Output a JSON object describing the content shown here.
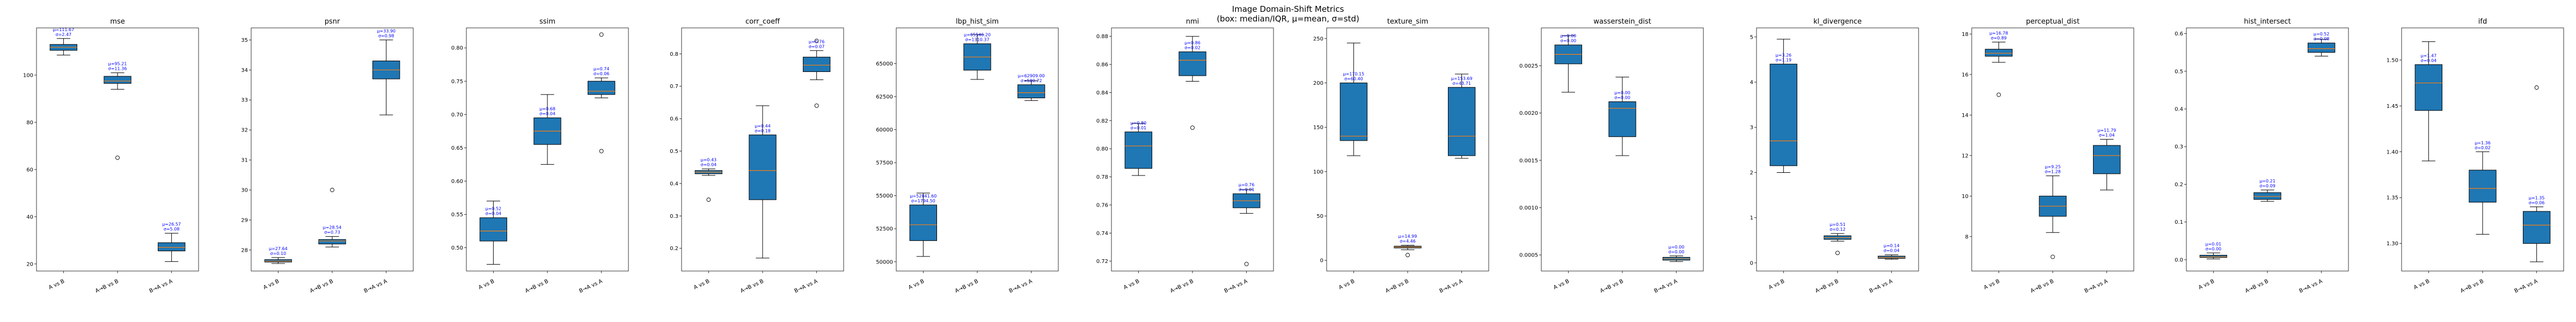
{
  "figure": {
    "title_line1": "Image Domain-Shift Metrics",
    "title_line2": "(box: median/IQR, μ=mean, σ=std)"
  },
  "colors": {
    "box_fill": "#1f77b4",
    "median": "#ff7f0e",
    "annotation": "#0000ff",
    "axis": "#000000"
  },
  "chart_data": [
    {
      "type": "box",
      "title": "mse",
      "categories": [
        "A vs B",
        "A→B vs B",
        "B→A vs A"
      ],
      "ylim": [
        17,
        120
      ],
      "yticks": [
        20,
        40,
        60,
        80,
        100
      ],
      "yticklabels": [
        "20",
        "40",
        "60",
        "80",
        "100"
      ],
      "boxes": [
        {
          "whislo": 108.5,
          "q1": 110.5,
          "med": 111.8,
          "q3": 113.0,
          "whishi": 115.5,
          "fliers": []
        },
        {
          "whislo": 94.0,
          "q1": 96.5,
          "med": 97.5,
          "q3": 99.5,
          "whishi": 101.0,
          "fliers": [
            65.0
          ]
        },
        {
          "whislo": 21.0,
          "q1": 25.5,
          "med": 27.0,
          "q3": 29.0,
          "whishi": 33.0,
          "fliers": []
        }
      ],
      "annotations": [
        {
          "mean_label": "μ=111.67",
          "std_label": "σ=2.47",
          "anchor": 115.5
        },
        {
          "mean_label": "μ=95.21",
          "std_label": "σ=11.36",
          "anchor": 101.0
        },
        {
          "mean_label": "μ=26.57",
          "std_label": "σ=5.08",
          "anchor": 33.0
        }
      ]
    },
    {
      "type": "box",
      "title": "psnr",
      "categories": [
        "A vs B",
        "A→B vs B",
        "B→A vs A"
      ],
      "ylim": [
        27.3,
        35.4
      ],
      "yticks": [
        28,
        29,
        30,
        31,
        32,
        33,
        34,
        35
      ],
      "yticklabels": [
        "28",
        "29",
        "30",
        "31",
        "32",
        "33",
        "34",
        "35"
      ],
      "boxes": [
        {
          "whislo": 27.55,
          "q1": 27.6,
          "med": 27.63,
          "q3": 27.68,
          "whishi": 27.75,
          "fliers": []
        },
        {
          "whislo": 28.1,
          "q1": 28.2,
          "med": 28.3,
          "q3": 28.35,
          "whishi": 28.45,
          "fliers": [
            30.0
          ]
        },
        {
          "whislo": 32.5,
          "q1": 33.7,
          "med": 34.0,
          "q3": 34.3,
          "whishi": 35.0,
          "fliers": []
        }
      ],
      "annotations": [
        {
          "mean_label": "μ=27.64",
          "std_label": "σ=0.10",
          "anchor": 27.75
        },
        {
          "mean_label": "μ=28.54",
          "std_label": "σ=0.73",
          "anchor": 28.45
        },
        {
          "mean_label": "μ=33.90",
          "std_label": "σ=0.98",
          "anchor": 35.0
        }
      ]
    },
    {
      "type": "box",
      "title": "ssim",
      "categories": [
        "A vs B",
        "A→B vs B",
        "B→A vs A"
      ],
      "ylim": [
        0.465,
        0.83
      ],
      "yticks": [
        0.5,
        0.55,
        0.6,
        0.65,
        0.7,
        0.75,
        0.8
      ],
      "yticklabels": [
        "0.50",
        "0.55",
        "0.60",
        "0.65",
        "0.70",
        "0.75",
        "0.80"
      ],
      "boxes": [
        {
          "whislo": 0.475,
          "q1": 0.51,
          "med": 0.525,
          "q3": 0.545,
          "whishi": 0.57,
          "fliers": []
        },
        {
          "whislo": 0.625,
          "q1": 0.655,
          "med": 0.675,
          "q3": 0.695,
          "whishi": 0.73,
          "fliers": []
        },
        {
          "whislo": 0.725,
          "q1": 0.73,
          "med": 0.735,
          "q3": 0.75,
          "whishi": 0.755,
          "fliers": [
            0.645,
            0.82
          ]
        }
      ],
      "annotations": [
        {
          "mean_label": "μ=0.52",
          "std_label": "σ=0.04",
          "anchor": 0.545
        },
        {
          "mean_label": "μ=0.68",
          "std_label": "σ=0.04",
          "anchor": 0.695
        },
        {
          "mean_label": "μ=0.74",
          "std_label": "σ=0.06",
          "anchor": 0.755
        }
      ]
    },
    {
      "type": "box",
      "title": "corr_coeff",
      "categories": [
        "A vs B",
        "A→B vs B",
        "B→A vs A"
      ],
      "ylim": [
        0.13,
        0.88
      ],
      "yticks": [
        0.2,
        0.3,
        0.4,
        0.5,
        0.6,
        0.7,
        0.8
      ],
      "yticklabels": [
        "0.2",
        "0.3",
        "0.4",
        "0.5",
        "0.6",
        "0.7",
        "0.8"
      ],
      "boxes": [
        {
          "whislo": 0.425,
          "q1": 0.43,
          "med": 0.435,
          "q3": 0.44,
          "whishi": 0.445,
          "fliers": [
            0.35
          ]
        },
        {
          "whislo": 0.17,
          "q1": 0.35,
          "med": 0.44,
          "q3": 0.55,
          "whishi": 0.64,
          "fliers": []
        },
        {
          "whislo": 0.72,
          "q1": 0.745,
          "med": 0.765,
          "q3": 0.79,
          "whishi": 0.81,
          "fliers": [
            0.64,
            0.84
          ]
        }
      ],
      "annotations": [
        {
          "mean_label": "μ=0.43",
          "std_label": "σ=0.04",
          "anchor": 0.445
        },
        {
          "mean_label": "μ=0.44",
          "std_label": "σ=0.18",
          "anchor": 0.55
        },
        {
          "mean_label": "μ=0.76",
          "std_label": "σ=0.07",
          "anchor": 0.81
        }
      ]
    },
    {
      "type": "box",
      "title": "lbp_hist_sim",
      "categories": [
        "A vs B",
        "A→B vs B",
        "B→A vs A"
      ],
      "ylim": [
        49300,
        67700
      ],
      "yticks": [
        50000,
        52500,
        55000,
        57500,
        60000,
        62500,
        65000
      ],
      "yticklabels": [
        "50000",
        "52500",
        "55000",
        "57500",
        "60000",
        "62500",
        "65000"
      ],
      "boxes": [
        {
          "whislo": 50400,
          "q1": 51600,
          "med": 52800,
          "q3": 54300,
          "whishi": 55200,
          "fliers": []
        },
        {
          "whislo": 63800,
          "q1": 64500,
          "med": 65500,
          "q3": 66500,
          "whishi": 67200,
          "fliers": []
        },
        {
          "whislo": 62200,
          "q1": 62400,
          "med": 62800,
          "q3": 63400,
          "whishi": 63700,
          "fliers": []
        }
      ],
      "annotations": [
        {
          "mean_label": "μ=52841.60",
          "std_label": "σ=1794.50",
          "anchor": 54300
        },
        {
          "mean_label": "μ=65546.20",
          "std_label": "σ=1310.37",
          "anchor": 66500
        },
        {
          "mean_label": "μ=62909.00",
          "std_label": "σ=580.72",
          "anchor": 63400
        }
      ]
    },
    {
      "type": "box",
      "title": "nmi",
      "categories": [
        "A vs B",
        "A→B vs B",
        "B→A vs A"
      ],
      "ylim": [
        0.713,
        0.886
      ],
      "yticks": [
        0.72,
        0.74,
        0.76,
        0.78,
        0.8,
        0.82,
        0.84,
        0.86,
        0.88
      ],
      "yticklabels": [
        "0.72",
        "0.74",
        "0.76",
        "0.78",
        "0.80",
        "0.82",
        "0.84",
        "0.86",
        "0.88"
      ],
      "boxes": [
        {
          "whislo": 0.781,
          "q1": 0.786,
          "med": 0.802,
          "q3": 0.812,
          "whishi": 0.818,
          "fliers": []
        },
        {
          "whislo": 0.848,
          "q1": 0.852,
          "med": 0.863,
          "q3": 0.869,
          "whishi": 0.88,
          "fliers": [
            0.815
          ]
        },
        {
          "whislo": 0.754,
          "q1": 0.758,
          "med": 0.763,
          "q3": 0.768,
          "whishi": 0.771,
          "fliers": [
            0.718
          ]
        }
      ],
      "annotations": [
        {
          "mean_label": "μ=0.80",
          "std_label": "σ=0.01",
          "anchor": 0.812
        },
        {
          "mean_label": "μ=0.86",
          "std_label": "σ=0.02",
          "anchor": 0.869
        },
        {
          "mean_label": "μ=0.76",
          "std_label": "σ=0.01",
          "anchor": 0.768
        }
      ]
    },
    {
      "type": "box",
      "title": "texture_sim",
      "categories": [
        "A vs B",
        "A→B vs B",
        "B→A vs A"
      ],
      "ylim": [
        -12,
        262
      ],
      "yticks": [
        0,
        50,
        100,
        150,
        200,
        250
      ],
      "yticklabels": [
        "0",
        "50",
        "100",
        "150",
        "200",
        "250"
      ],
      "boxes": [
        {
          "whislo": 118,
          "q1": 135,
          "med": 140,
          "q3": 200,
          "whishi": 245,
          "fliers": []
        },
        {
          "whislo": 12,
          "q1": 14,
          "med": 15,
          "q3": 16,
          "whishi": 17,
          "fliers": [
            6
          ]
        },
        {
          "whislo": 115,
          "q1": 118,
          "med": 140,
          "q3": 195,
          "whishi": 210,
          "fliers": []
        }
      ],
      "annotations": [
        {
          "mean_label": "μ=170.15",
          "std_label": "σ=60.40",
          "anchor": 200
        },
        {
          "mean_label": "μ=14.99",
          "std_label": "σ=4.46",
          "anchor": 17
        },
        {
          "mean_label": "μ=153.69",
          "std_label": "σ=43.71",
          "anchor": 195
        }
      ]
    },
    {
      "type": "box",
      "title": "wasserstein_dist",
      "categories": [
        "A vs B",
        "A→B vs B",
        "B→A vs A"
      ],
      "ylim": [
        0.00033,
        0.0029
      ],
      "yticks": [
        0.0005,
        0.001,
        0.0015,
        0.002,
        0.0025
      ],
      "yticklabels": [
        "0.0005",
        "0.0010",
        "0.0015",
        "0.0020",
        "0.0025"
      ],
      "boxes": [
        {
          "whislo": 0.00222,
          "q1": 0.00252,
          "med": 0.00262,
          "q3": 0.00272,
          "whishi": 0.00282,
          "fliers": []
        },
        {
          "whislo": 0.00155,
          "q1": 0.00175,
          "med": 0.00205,
          "q3": 0.00212,
          "whishi": 0.00238,
          "fliers": []
        },
        {
          "whislo": 0.00043,
          "q1": 0.000445,
          "med": 0.00046,
          "q3": 0.000475,
          "whishi": 0.00049,
          "fliers": []
        }
      ],
      "annotations": [
        {
          "mean_label": "μ=0.00",
          "std_label": "σ=0.00",
          "anchor": 0.00272
        },
        {
          "mean_label": "μ=0.00",
          "std_label": "σ=0.00",
          "anchor": 0.00212
        },
        {
          "mean_label": "μ=0.00",
          "std_label": "σ=0.00",
          "anchor": 0.00049
        }
      ]
    },
    {
      "type": "box",
      "title": "kl_divergence",
      "categories": [
        "A vs B",
        "A→B vs B",
        "B→A vs A"
      ],
      "ylim": [
        -0.18,
        5.2
      ],
      "yticks": [
        0,
        1,
        2,
        3,
        4,
        5
      ],
      "yticklabels": [
        "0",
        "1",
        "2",
        "3",
        "4",
        "5"
      ],
      "boxes": [
        {
          "whislo": 2.0,
          "q1": 2.15,
          "med": 2.7,
          "q3": 4.4,
          "whishi": 4.95,
          "fliers": []
        },
        {
          "whislo": 0.48,
          "q1": 0.52,
          "med": 0.56,
          "q3": 0.6,
          "whishi": 0.65,
          "fliers": [
            0.22
          ]
        },
        {
          "whislo": 0.08,
          "q1": 0.1,
          "med": 0.12,
          "q3": 0.15,
          "whishi": 0.18,
          "fliers": []
        }
      ],
      "annotations": [
        {
          "mean_label": "μ=3.26",
          "std_label": "σ=1.19",
          "anchor": 4.4
        },
        {
          "mean_label": "μ=0.51",
          "std_label": "σ=0.12",
          "anchor": 0.65
        },
        {
          "mean_label": "μ=0.14",
          "std_label": "σ=0.04",
          "anchor": 0.18
        }
      ]
    },
    {
      "type": "box",
      "title": "perceptual_dist",
      "categories": [
        "A vs B",
        "A→B vs B",
        "B→A vs A"
      ],
      "ylim": [
        6.3,
        18.3
      ],
      "yticks": [
        8,
        10,
        12,
        14,
        16,
        18
      ],
      "yticklabels": [
        "8",
        "10",
        "12",
        "14",
        "16",
        "18"
      ],
      "boxes": [
        {
          "whislo": 16.6,
          "q1": 16.9,
          "med": 17.05,
          "q3": 17.25,
          "whishi": 17.6,
          "fliers": [
            15.0
          ]
        },
        {
          "whislo": 8.2,
          "q1": 9.0,
          "med": 9.5,
          "q3": 10.0,
          "whishi": 11.0,
          "fliers": [
            7.0
          ]
        },
        {
          "whislo": 10.3,
          "q1": 11.1,
          "med": 12.0,
          "q3": 12.5,
          "whishi": 12.8,
          "fliers": []
        }
      ],
      "annotations": [
        {
          "mean_label": "μ=16.78",
          "std_label": "σ=0.89",
          "anchor": 17.6
        },
        {
          "mean_label": "μ=9.25",
          "std_label": "σ=1.28",
          "anchor": 11.0
        },
        {
          "mean_label": "μ=11.79",
          "std_label": "σ=1.04",
          "anchor": 12.8
        }
      ]
    },
    {
      "type": "box",
      "title": "hist_intersect",
      "categories": [
        "A vs B",
        "A→B vs B",
        "B→A vs A"
      ],
      "ylim": [
        -0.03,
        0.615
      ],
      "yticks": [
        0.0,
        0.1,
        0.2,
        0.3,
        0.4,
        0.5,
        0.6
      ],
      "yticklabels": [
        "0.0",
        "0.1",
        "0.2",
        "0.3",
        "0.4",
        "0.5",
        "0.6"
      ],
      "boxes": [
        {
          "whislo": 0.002,
          "q1": 0.006,
          "med": 0.008,
          "q3": 0.012,
          "whishi": 0.018,
          "fliers": []
        },
        {
          "whislo": 0.155,
          "q1": 0.16,
          "med": 0.168,
          "q3": 0.178,
          "whishi": 0.185,
          "fliers": []
        },
        {
          "whislo": 0.54,
          "q1": 0.55,
          "med": 0.56,
          "q3": 0.575,
          "whishi": 0.585,
          "fliers": []
        }
      ],
      "annotations": [
        {
          "mean_label": "μ=0.01",
          "std_label": "σ=0.00",
          "anchor": 0.018
        },
        {
          "mean_label": "μ=0.21",
          "std_label": "σ=0.09",
          "anchor": 0.185
        },
        {
          "mean_label": "μ=0.52",
          "std_label": "σ=0.08",
          "anchor": 0.575
        }
      ]
    },
    {
      "type": "box",
      "title": "ifd",
      "categories": [
        "A vs B",
        "A→B vs B",
        "B→A vs A"
      ],
      "ylim": [
        1.27,
        1.535
      ],
      "yticks": [
        1.3,
        1.35,
        1.4,
        1.45,
        1.5
      ],
      "yticklabels": [
        "1.30",
        "1.35",
        "1.40",
        "1.45",
        "1.50"
      ],
      "boxes": [
        {
          "whislo": 1.39,
          "q1": 1.445,
          "med": 1.475,
          "q3": 1.495,
          "whishi": 1.52,
          "fliers": []
        },
        {
          "whislo": 1.31,
          "q1": 1.345,
          "med": 1.36,
          "q3": 1.38,
          "whishi": 1.4,
          "fliers": []
        },
        {
          "whislo": 1.28,
          "q1": 1.3,
          "med": 1.32,
          "q3": 1.335,
          "whishi": 1.34,
          "fliers": [
            1.47
          ]
        }
      ],
      "annotations": [
        {
          "mean_label": "μ=1.47",
          "std_label": "σ=0.04",
          "anchor": 1.495
        },
        {
          "mean_label": "μ=1.36",
          "std_label": "σ=0.02",
          "anchor": 1.4
        },
        {
          "mean_label": "μ=1.35",
          "std_label": "σ=0.06",
          "anchor": 1.34
        }
      ]
    }
  ]
}
